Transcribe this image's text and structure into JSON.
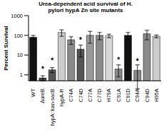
{
  "chart_data": {
    "type": "bar",
    "title": "Urea-dependent acid survival of H. pylori hypA Zn site mutants",
    "y_label": "Percent Survival",
    "categories": [
      "WT",
      "ΔureB",
      "hypA::kan-sacB",
      "hypA-R",
      "C74A",
      "C74D",
      "C77A",
      "C77D",
      "H79A",
      "C91A",
      "C91D",
      "C94A",
      "C94D",
      "H95A"
    ],
    "values": [
      80,
      0.7,
      1.8,
      140,
      60,
      20,
      100,
      100,
      95,
      2,
      100,
      1.7,
      120,
      90
    ],
    "error": [
      20,
      0.2,
      0.5,
      50,
      25,
      12,
      60,
      40,
      20,
      1.2,
      40,
      1.5,
      60,
      15
    ],
    "colors": [
      "#111111",
      "#444444",
      "#555555",
      "#cccccc",
      "#8a8a8a",
      "#555555",
      "#9a9a9a",
      "#8a8a8a",
      "#d8d8d8",
      "#8a8a8a",
      "#111111",
      "#8a8a8a",
      "#8a8a8a",
      "#cccccc"
    ],
    "annotations": [
      {
        "category": "ΔureB",
        "text": "*"
      },
      {
        "category": "hypA::kan-sacB",
        "text": "*"
      },
      {
        "category": "C74D",
        "text": "*"
      },
      {
        "category": "C91A",
        "text": "*"
      },
      {
        "category": "C94A",
        "text": "*"
      }
    ],
    "log": "y",
    "ylim": [
      0.5,
      1000
    ],
    "yticks": [
      1,
      10,
      100,
      1000
    ],
    "grid": false
  }
}
